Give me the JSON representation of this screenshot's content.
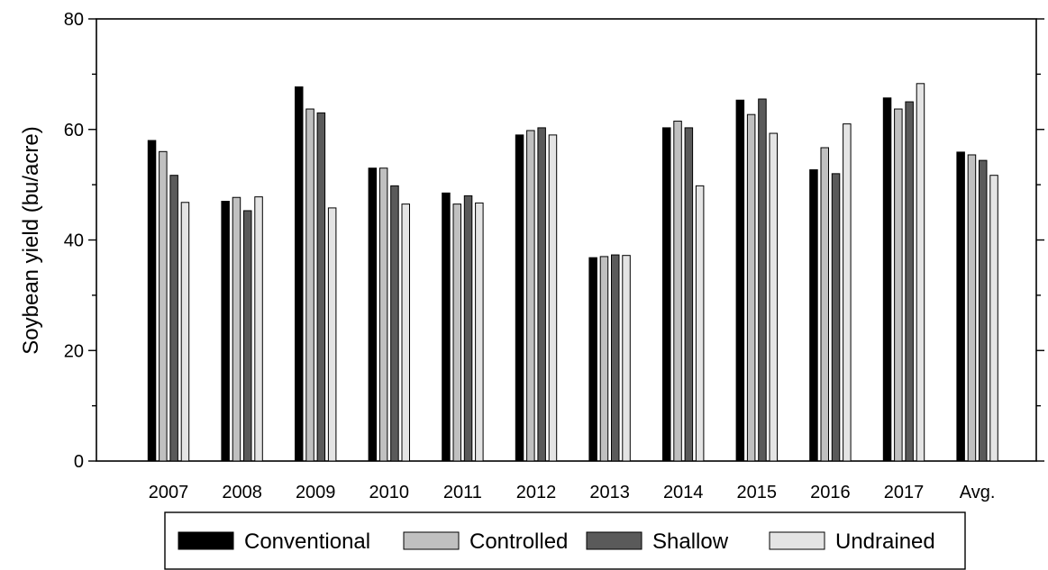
{
  "chart_data": {
    "type": "bar",
    "title": "",
    "xlabel": "",
    "ylabel": "Soybean yield (bu/acre)",
    "ylim": [
      0,
      80
    ],
    "yticks": [
      0,
      20,
      40,
      60,
      80
    ],
    "grid": false,
    "legend_position": "bottom",
    "categories": [
      "2007",
      "2008",
      "2009",
      "2010",
      "2011",
      "2012",
      "2013",
      "2014",
      "2015",
      "2016",
      "2017",
      "Avg."
    ],
    "series": [
      {
        "name": "Conventional",
        "color": "#000000",
        "values": [
          58.0,
          47.0,
          67.7,
          53.0,
          48.5,
          59.0,
          36.8,
          60.3,
          65.3,
          52.7,
          65.7,
          55.9
        ]
      },
      {
        "name": "Controlled",
        "color": "#c0c0c0",
        "values": [
          56.0,
          47.7,
          63.7,
          53.0,
          46.5,
          59.8,
          37.0,
          61.5,
          62.7,
          56.7,
          63.7,
          55.4
        ]
      },
      {
        "name": "Shallow",
        "color": "#5a5a5a",
        "values": [
          51.7,
          45.3,
          63.0,
          49.8,
          48.0,
          60.3,
          37.3,
          60.3,
          65.5,
          52.0,
          65.0,
          54.4
        ]
      },
      {
        "name": "Undrained",
        "color": "#e4e4e4",
        "values": [
          46.8,
          47.8,
          45.8,
          46.5,
          46.7,
          59.0,
          37.2,
          49.8,
          59.3,
          61.0,
          68.3,
          51.7
        ]
      }
    ]
  }
}
